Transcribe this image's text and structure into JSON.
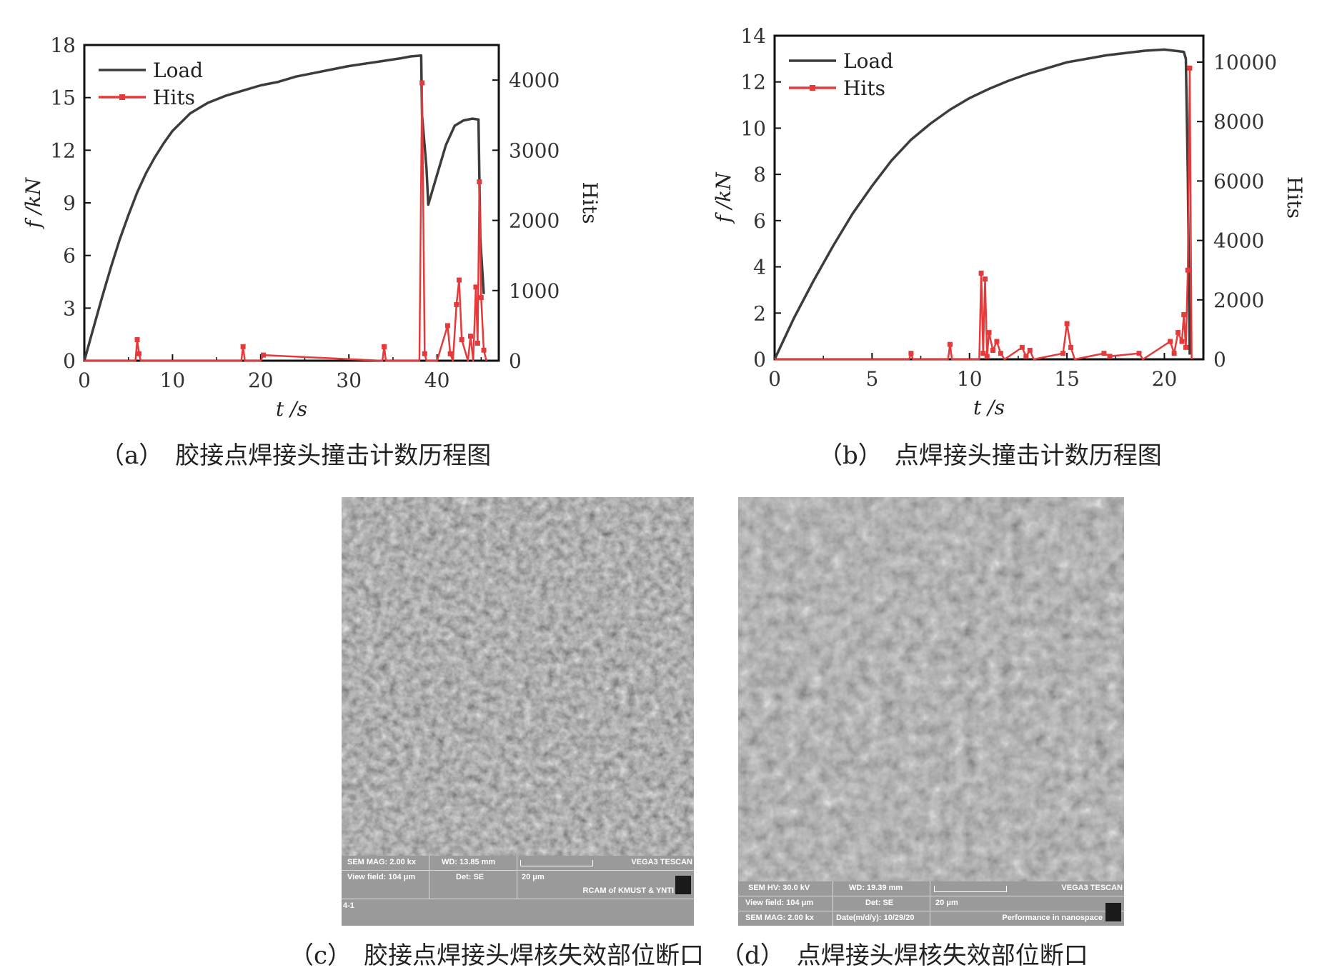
{
  "chart_data": [
    {
      "id": "a",
      "type": "line",
      "xlabel": "t /s",
      "ylabel": "f /kN",
      "y2label": "Hits",
      "xlim": [
        0,
        47
      ],
      "ylim": [
        0,
        18
      ],
      "y2lim": [
        0,
        4500
      ],
      "xticks": [
        0,
        10,
        20,
        30,
        40
      ],
      "yticks": [
        0,
        3,
        6,
        9,
        12,
        15,
        18
      ],
      "y2ticks": [
        0,
        1000,
        2000,
        3000,
        4000
      ],
      "legend_position": "top-left",
      "series": [
        {
          "name": "Load",
          "color": "#3c3c3c",
          "axis": "left",
          "x": [
            0,
            1,
            2,
            3,
            4,
            5,
            6,
            7,
            8,
            9,
            10,
            12,
            14,
            16,
            18,
            20,
            22,
            24,
            26,
            28,
            30,
            32,
            34,
            36,
            37,
            38.2,
            38.3,
            38.8,
            39.0,
            40,
            41,
            42,
            43,
            44,
            44.7,
            44.9,
            45.3
          ],
          "y": [
            0,
            1.8,
            3.6,
            5.3,
            6.9,
            8.3,
            9.6,
            10.7,
            11.6,
            12.4,
            13.1,
            14.1,
            14.7,
            15.1,
            15.4,
            15.7,
            15.9,
            16.2,
            16.4,
            16.6,
            16.8,
            16.95,
            17.1,
            17.25,
            17.35,
            17.4,
            14.0,
            11.0,
            8.9,
            10.6,
            12.3,
            13.4,
            13.7,
            13.8,
            13.75,
            7.0,
            3.8
          ]
        },
        {
          "name": "Hits",
          "color": "#e8393a",
          "axis": "right",
          "x": [
            0,
            5.8,
            6.0,
            6.2,
            6.4,
            8,
            17.8,
            18.0,
            18.2,
            20,
            20.3,
            33.8,
            34.0,
            34.2,
            38.0,
            38.3,
            38.6,
            38.8,
            40,
            41.2,
            41.5,
            41.8,
            42.2,
            42.5,
            42.8,
            43.5,
            43.8,
            44.1,
            44.4,
            44.6,
            44.8,
            45.0,
            45.3,
            45.6
          ],
          "y": [
            0,
            0,
            300,
            100,
            0,
            0,
            0,
            200,
            0,
            0,
            80,
            0,
            200,
            0,
            0,
            3960,
            100,
            0,
            0,
            500,
            100,
            0,
            800,
            1150,
            300,
            0,
            350,
            0,
            1050,
            250,
            2550,
            900,
            150,
            0
          ]
        }
      ]
    },
    {
      "id": "b",
      "type": "line",
      "xlabel": "t /s",
      "ylabel": "f /kN",
      "y2label": "Hits",
      "xlim": [
        0,
        22
      ],
      "ylim": [
        0,
        14
      ],
      "y2lim": [
        0,
        10889
      ],
      "xticks": [
        0,
        5,
        10,
        15,
        20
      ],
      "yticks": [
        0,
        2,
        4,
        6,
        8,
        10,
        12,
        14
      ],
      "y2ticks": [
        0,
        2000,
        4000,
        6000,
        8000,
        10000
      ],
      "legend_position": "top-left",
      "series": [
        {
          "name": "Load",
          "color": "#3c3c3c",
          "axis": "left",
          "x": [
            0,
            1,
            2,
            3,
            4,
            5,
            6,
            7,
            8,
            9,
            10,
            11,
            12,
            13,
            14,
            15,
            16,
            17,
            18,
            19,
            20,
            20.5,
            21,
            21.1,
            21.2,
            21.3
          ],
          "y": [
            0,
            1.8,
            3.4,
            4.9,
            6.3,
            7.5,
            8.6,
            9.5,
            10.2,
            10.8,
            11.3,
            11.7,
            12.05,
            12.35,
            12.6,
            12.85,
            13.0,
            13.15,
            13.25,
            13.35,
            13.4,
            13.35,
            13.3,
            13.0,
            8.0,
            0.2
          ]
        },
        {
          "name": "Hits",
          "color": "#e8393a",
          "axis": "right",
          "x": [
            0,
            6.9,
            7.0,
            7.1,
            8.9,
            9.0,
            9.1,
            10.5,
            10.6,
            10.7,
            10.8,
            10.9,
            11.0,
            11.2,
            11.4,
            11.6,
            11.8,
            12.7,
            12.9,
            13.1,
            13.3,
            14.8,
            15.0,
            15.2,
            15.4,
            16.9,
            17.2,
            18.7,
            18.9,
            20.3,
            20.5,
            20.7,
            20.9,
            21.0,
            21.1,
            21.2,
            21.3,
            21.4
          ],
          "y": [
            0,
            0,
            200,
            0,
            0,
            500,
            0,
            0,
            2900,
            200,
            2700,
            100,
            900,
            300,
            600,
            200,
            0,
            400,
            100,
            300,
            0,
            200,
            1200,
            400,
            0,
            200,
            100,
            200,
            0,
            600,
            200,
            900,
            600,
            1500,
            400,
            3000,
            9800,
            0
          ]
        }
      ]
    }
  ],
  "captions": {
    "a": "（a）　胶接点焊接头撞击计数历程图",
    "b": "（b）　点焊接头撞击计数历程图",
    "c": "（c）　胶接点焊接头焊核失效部位断口",
    "d": "（d）　点焊接头焊核失效部位断口"
  },
  "sem_c": {
    "mag": "SEM MAG: 2.00 kx",
    "wd": "WD: 13.85 mm",
    "brand": "VEGA3 TESCAN",
    "view_field": "View field: 104 μm",
    "det": "Det: SE",
    "scale": "20 μm",
    "lab": "RCAM of KMUST & YNTI",
    "sample": "4-1"
  },
  "sem_d": {
    "hv": "SEM HV: 30.0 kV",
    "wd": "WD: 19.39 mm",
    "brand": "VEGA3 TESCAN",
    "view_field": "View field: 104 μm",
    "det": "Det: SE",
    "scale": "20 μm",
    "mag": "SEM MAG: 2.00 kx",
    "date": "Date(m/d/y): 10/29/20",
    "slogan": "Performance in nanospace"
  }
}
